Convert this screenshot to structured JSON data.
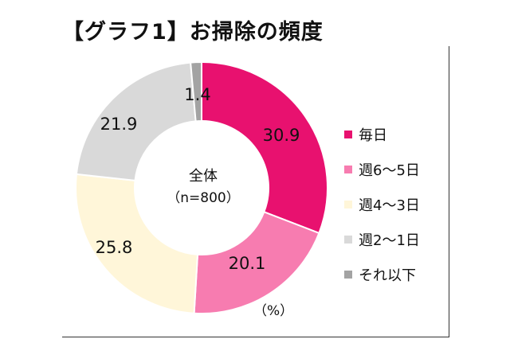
{
  "title": "【グラフ1】お掃除の頻度",
  "center": {
    "label": "全体",
    "sublabel": "（n=800）"
  },
  "unit_label": "（%）",
  "colors": {
    "daily": "#E8116F",
    "w6to5": "#F77CB0",
    "w4to3": "#FFF6D9",
    "w2to1": "#D9D9D9",
    "less": "#A3A3A3"
  },
  "chart_data": {
    "type": "pie",
    "donut": true,
    "categories": [
      "毎日",
      "週6〜5日",
      "週4〜3日",
      "週2〜1日",
      "それ以下"
    ],
    "values": [
      30.9,
      20.1,
      25.8,
      21.9,
      1.4
    ],
    "value_labels": [
      "30.9",
      "20.1",
      "25.8",
      "21.9",
      "1.4"
    ],
    "colors": [
      "#E8116F",
      "#F77CB0",
      "#FFF6D9",
      "#D9D9D9",
      "#A3A3A3"
    ],
    "start_angle": "12 o'clock",
    "direction": "clockwise",
    "legend_position": "right"
  },
  "legend": [
    {
      "label": "毎日",
      "color": "#E8116F"
    },
    {
      "label": "週6〜5日",
      "color": "#F77CB0"
    },
    {
      "label": "週4〜3日",
      "color": "#FFF6D9"
    },
    {
      "label": "週2〜1日",
      "color": "#D9D9D9"
    },
    {
      "label": "それ以下",
      "color": "#A3A3A3"
    }
  ]
}
